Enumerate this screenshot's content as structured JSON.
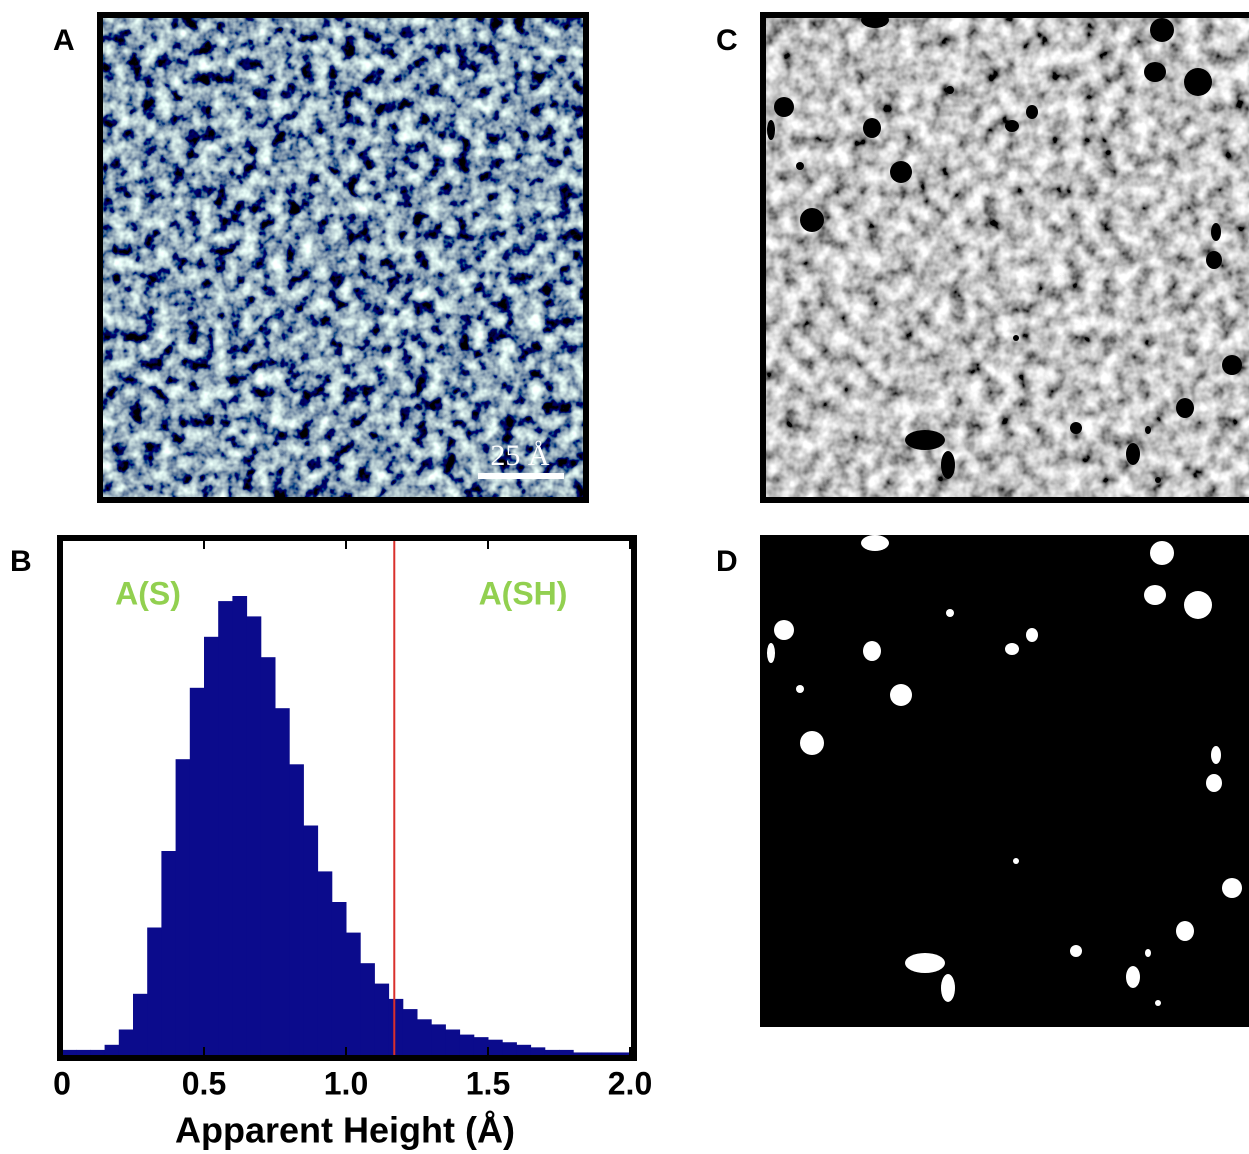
{
  "panel_labels": [
    "A",
    "B",
    "C",
    "D"
  ],
  "scale_bar": "25 Å",
  "chart_data": {
    "type": "histogram",
    "xlabel": "Apparent Height (Å)",
    "annotations": [
      "A(S)",
      "A(SH)"
    ],
    "annotation_color": "#92d050",
    "color": "#0b0b8c",
    "threshold": 1.17,
    "threshold_color": "#d9302c",
    "xlim": [
      0,
      2
    ],
    "xticks": [
      0,
      0.5,
      {
        "value": 1,
        "label": "1.0"
      },
      1.5,
      {
        "value": 2,
        "label": "2.0"
      }
    ],
    "ylim": [
      0,
      100
    ],
    "bins": [
      0,
      0.05,
      0.1,
      0.15,
      0.2,
      0.25,
      0.3,
      0.35,
      0.4,
      0.45,
      0.5,
      0.55,
      0.6,
      0.65,
      0.7,
      0.75,
      0.8,
      0.85,
      0.9,
      0.95,
      1,
      1.05,
      1.1,
      1.15,
      1.2,
      1.25,
      1.3,
      1.35,
      1.4,
      1.45,
      1.5,
      1.55,
      1.6,
      1.65,
      1.7,
      1.75,
      1.8,
      1.85,
      1.9,
      1.95,
      2
    ],
    "counts": [
      1,
      1,
      1,
      2,
      5,
      12,
      25,
      40,
      58,
      72,
      82,
      89,
      90,
      86,
      78,
      68,
      57,
      45,
      36,
      30,
      24,
      18,
      14,
      11,
      9,
      7,
      6,
      5,
      4,
      3.5,
      3,
      2.5,
      2,
      1.5,
      1,
      1,
      0.5,
      0.5,
      0.5,
      0.5
    ]
  }
}
